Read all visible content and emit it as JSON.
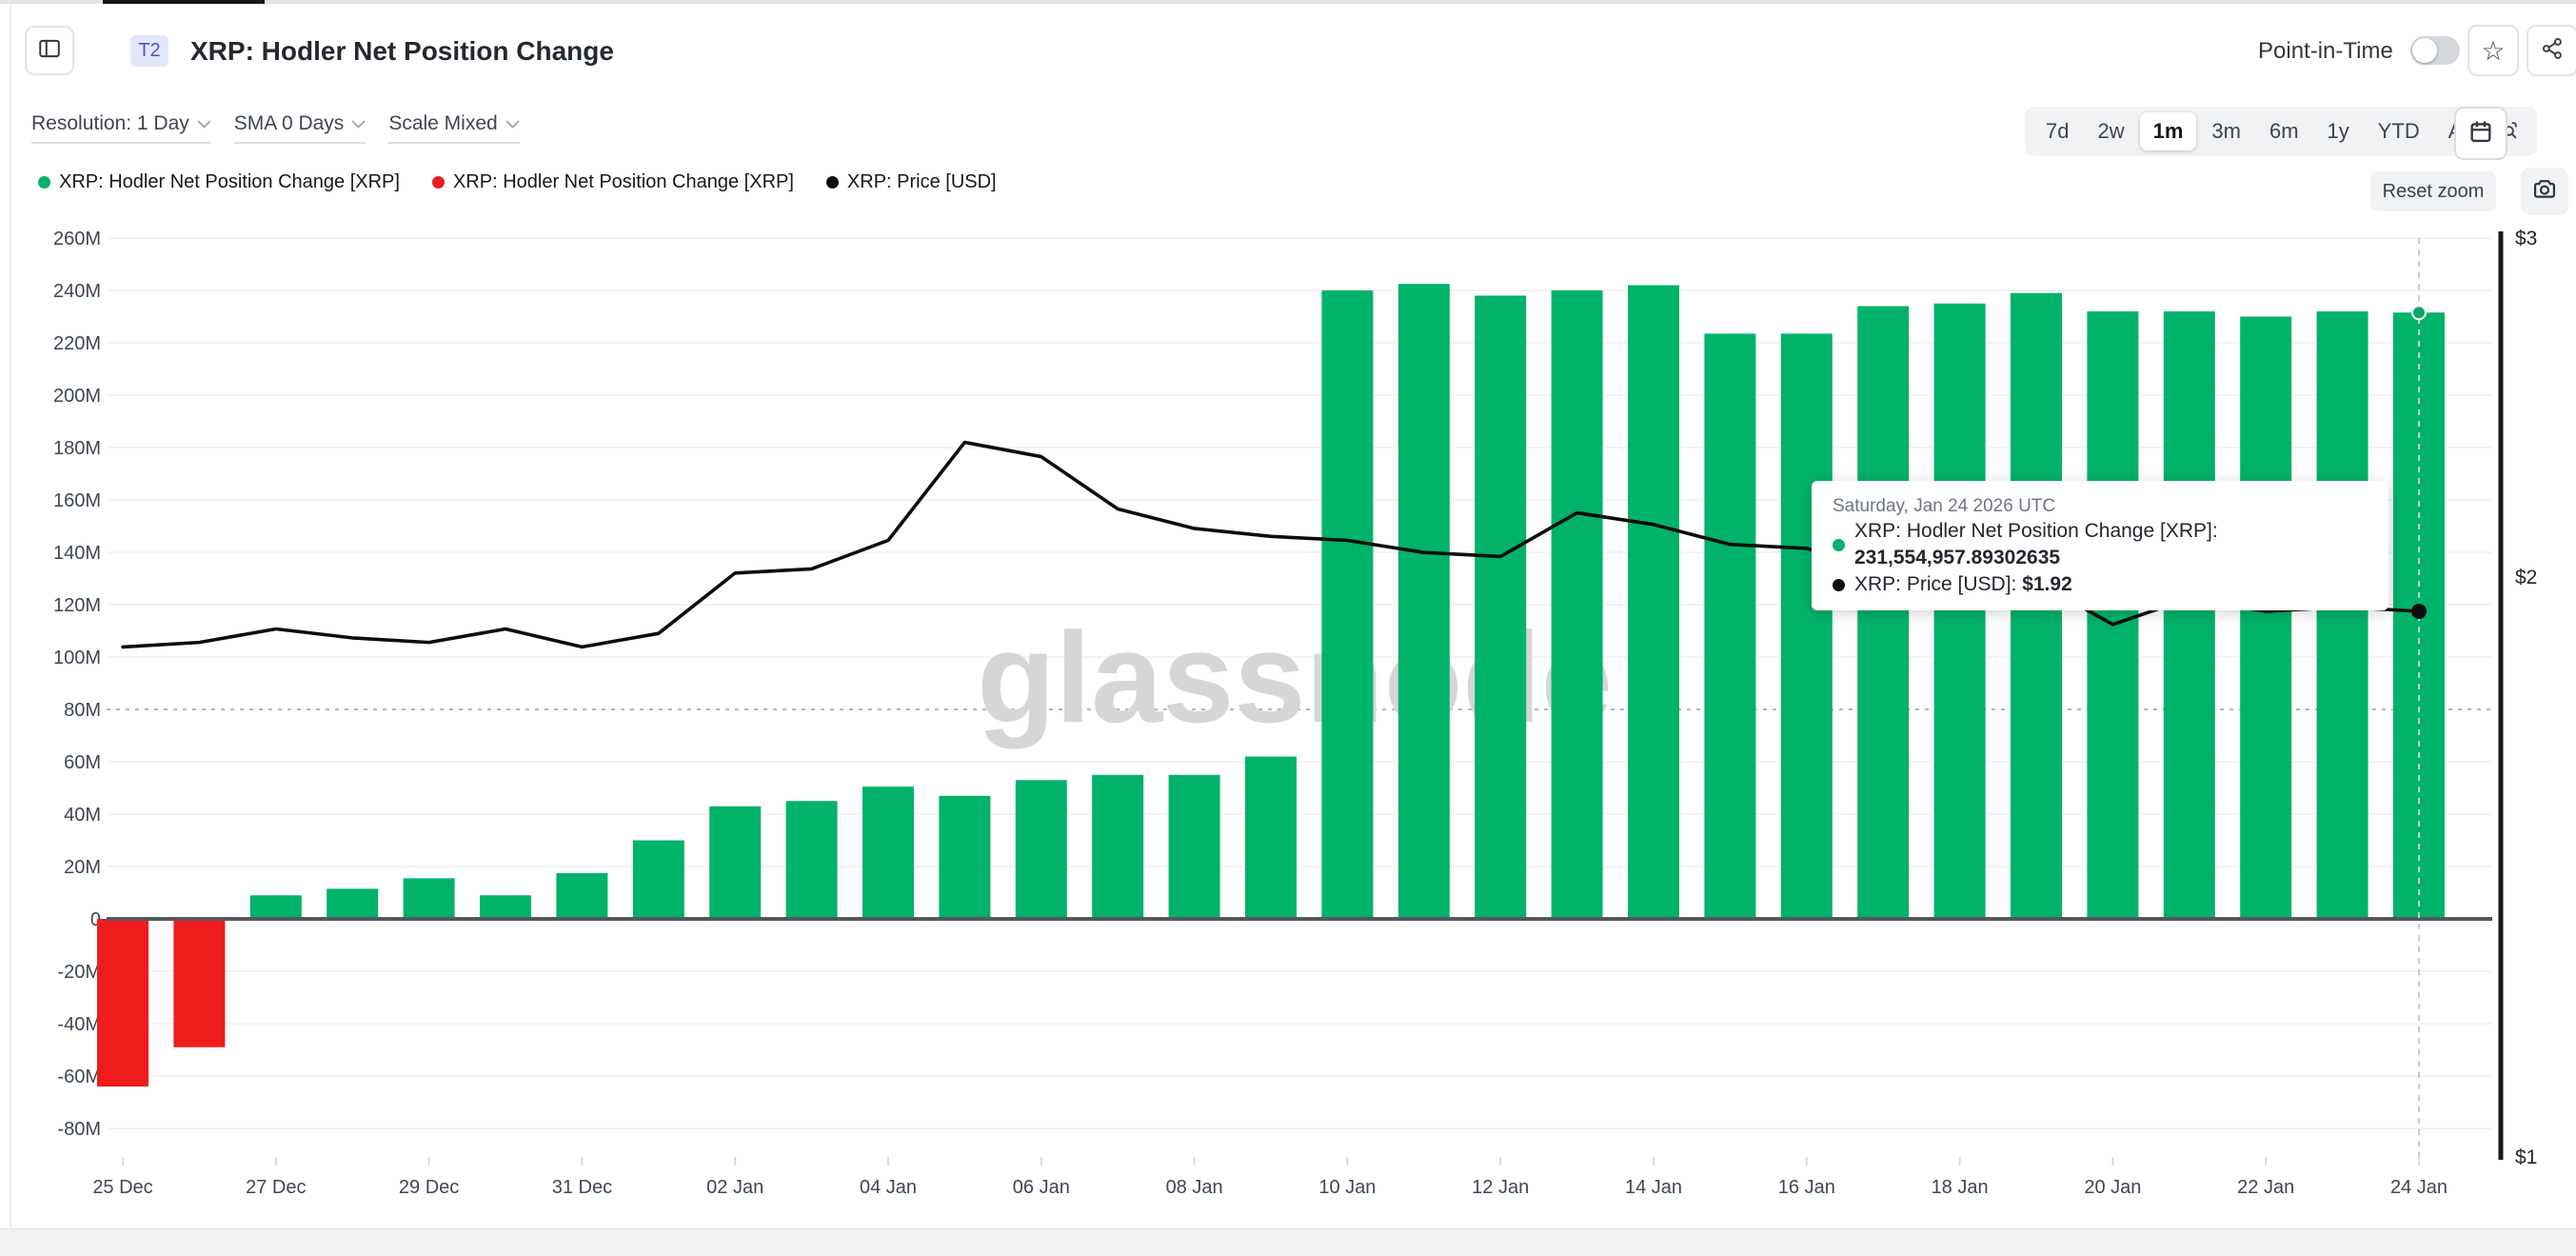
{
  "header": {
    "badge": "T2",
    "title": "XRP: Hodler Net Position Change",
    "point_in_time_label": "Point-in-Time",
    "point_in_time_enabled": false
  },
  "toolbar": {
    "resolution": "Resolution: 1 Day",
    "sma": "SMA 0 Days",
    "scale": "Scale Mixed"
  },
  "ranges": {
    "options": [
      "7d",
      "2w",
      "1m",
      "3m",
      "6m",
      "1y",
      "YTD",
      "All"
    ],
    "active": "1m"
  },
  "legend": [
    {
      "label": "XRP: Hodler Net Position Change [XRP]",
      "color": "#00b26a"
    },
    {
      "label": "XRP: Hodler Net Position Change [XRP]",
      "color": "#ee1c1c"
    },
    {
      "label": "XRP: Price [USD]",
      "color": "#0d0d0d"
    }
  ],
  "chart_controls": {
    "reset_zoom": "Reset zoom"
  },
  "watermark": "glassnode",
  "tooltip": {
    "date": "Saturday, Jan 24 2026 UTC",
    "rows": [
      {
        "color": "#00b26a",
        "label": "XRP: Hodler Net Position Change [XRP]:",
        "value": "231,554,957.89302635"
      },
      {
        "color": "#0d0d0d",
        "label": "XRP: Price [USD]:",
        "value": "$1.92"
      }
    ]
  },
  "chart_data": {
    "type": "bar",
    "title": "XRP: Hodler Net Position Change",
    "categories": [
      "25 Dec",
      "26 Dec",
      "27 Dec",
      "28 Dec",
      "29 Dec",
      "30 Dec",
      "31 Dec",
      "01 Jan",
      "02 Jan",
      "03 Jan",
      "04 Jan",
      "05 Jan",
      "06 Jan",
      "07 Jan",
      "08 Jan",
      "09 Jan",
      "10 Jan",
      "11 Jan",
      "12 Jan",
      "13 Jan",
      "14 Jan",
      "15 Jan",
      "16 Jan",
      "17 Jan",
      "18 Jan",
      "19 Jan",
      "20 Jan",
      "21 Jan",
      "22 Jan",
      "23 Jan",
      "24 Jan"
    ],
    "series": [
      {
        "name": "XRP: Hodler Net Position Change [XRP]",
        "type": "bar",
        "axis": "left",
        "unit": "XRP (millions)",
        "values": [
          -64,
          -49,
          9,
          11.5,
          15.5,
          9,
          17.5,
          30,
          43,
          45,
          50.5,
          47,
          53,
          55,
          55,
          62,
          240,
          242.5,
          238,
          240,
          242,
          223.5,
          223.5,
          234,
          235,
          239,
          232,
          232,
          230,
          232,
          231.555
        ]
      },
      {
        "name": "XRP: Price [USD]",
        "type": "line",
        "axis": "right",
        "unit": "USD",
        "values": [
          1.84,
          1.85,
          1.88,
          1.86,
          1.85,
          1.88,
          1.84,
          1.87,
          2.01,
          2.02,
          2.09,
          2.35,
          2.31,
          2.17,
          2.12,
          2.1,
          2.09,
          2.06,
          2.05,
          2.16,
          2.13,
          2.08,
          2.07,
          2.02,
          1.99,
          1.99,
          1.89,
          1.95,
          1.92,
          1.93,
          1.92
        ]
      }
    ],
    "y_left": {
      "ticks": [
        {
          "label": "260M",
          "value": 260
        },
        {
          "label": "240M",
          "value": 240
        },
        {
          "label": "220M",
          "value": 220
        },
        {
          "label": "200M",
          "value": 200
        },
        {
          "label": "180M",
          "value": 180
        },
        {
          "label": "160M",
          "value": 160
        },
        {
          "label": "140M",
          "value": 140
        },
        {
          "label": "120M",
          "value": 120
        },
        {
          "label": "100M",
          "value": 100
        },
        {
          "label": "80M",
          "value": 80
        },
        {
          "label": "60M",
          "value": 60
        },
        {
          "label": "40M",
          "value": 40
        },
        {
          "label": "20M",
          "value": 20
        },
        {
          "label": "0",
          "value": 0
        },
        {
          "label": "-20M",
          "value": -20
        },
        {
          "label": "-40M",
          "value": -40
        },
        {
          "label": "-60M",
          "value": -60
        },
        {
          "label": "-80M",
          "value": -80
        }
      ],
      "range": [
        -80,
        260
      ]
    },
    "y_right": {
      "scale": "log",
      "ticks": [
        {
          "label": "$3",
          "value": 3
        },
        {
          "label": "$2",
          "value": 2
        },
        {
          "label": "$1",
          "value": 1
        }
      ],
      "range": [
        1,
        3
      ]
    },
    "x_ticks": [
      {
        "label": "25 Dec",
        "index": 0
      },
      {
        "label": "27 Dec",
        "index": 2
      },
      {
        "label": "29 Dec",
        "index": 4
      },
      {
        "label": "31 Dec",
        "index": 6
      },
      {
        "label": "02 Jan",
        "index": 8
      },
      {
        "label": "04 Jan",
        "index": 10
      },
      {
        "label": "06 Jan",
        "index": 12
      },
      {
        "label": "08 Jan",
        "index": 14
      },
      {
        "label": "10 Jan",
        "index": 16
      },
      {
        "label": "12 Jan",
        "index": 18
      },
      {
        "label": "14 Jan",
        "index": 20
      },
      {
        "label": "16 Jan",
        "index": 22
      },
      {
        "label": "18 Jan",
        "index": 24
      },
      {
        "label": "20 Jan",
        "index": 26
      },
      {
        "label": "22 Jan",
        "index": 28
      },
      {
        "label": "24 Jan",
        "index": 30
      }
    ],
    "reference_dotted_line_left_value": 80,
    "highlight": {
      "index": 30,
      "bar_value": "231,554,957.89302635",
      "price_value": "$1.92"
    },
    "colors": {
      "positive": "#00b26a",
      "negative": "#ee1c1c",
      "price": "#0d0d0d",
      "grid": "#f2f3f5",
      "zero_line": "#54585d"
    },
    "legend_position": "top-left",
    "grid": true
  }
}
